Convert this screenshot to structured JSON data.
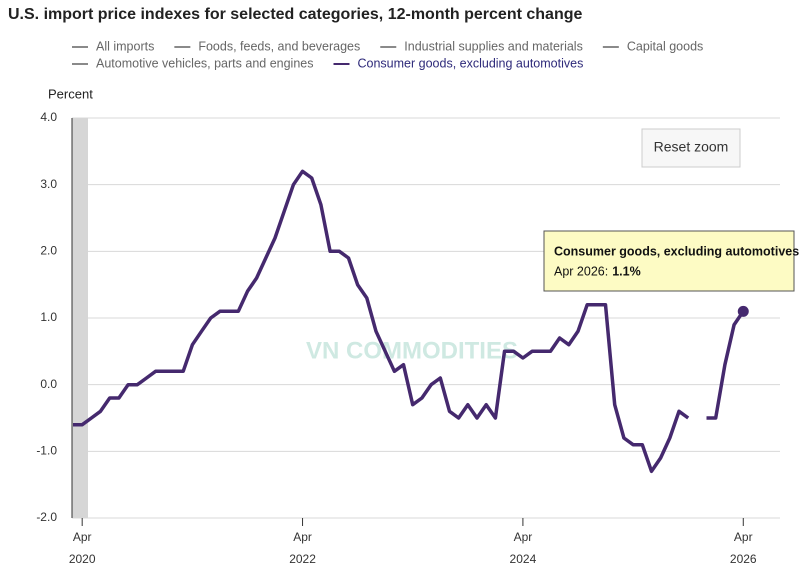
{
  "chart_data": {
    "type": "line",
    "title": "U.S. import price indexes for selected categories, 12-month percent change",
    "y_axis_label": "Percent",
    "watermark": "VN COMMODITIES",
    "reset_button": "Reset zoom",
    "x": [
      "2020-03",
      "2020-04",
      "2020-05",
      "2020-06",
      "2020-07",
      "2020-08",
      "2020-09",
      "2020-10",
      "2020-11",
      "2020-12",
      "2021-01",
      "2021-02",
      "2021-03",
      "2021-04",
      "2021-05",
      "2021-06",
      "2021-07",
      "2021-08",
      "2021-09",
      "2021-10",
      "2021-11",
      "2021-12",
      "2022-01",
      "2022-02",
      "2022-03",
      "2022-04",
      "2022-05",
      "2022-06",
      "2022-07",
      "2022-08",
      "2022-09",
      "2022-10",
      "2022-11",
      "2022-12",
      "2023-01",
      "2023-02",
      "2023-03",
      "2023-04",
      "2023-05",
      "2023-06",
      "2023-07",
      "2023-08",
      "2023-09",
      "2023-10",
      "2023-11",
      "2023-12",
      "2024-01",
      "2024-02",
      "2024-03",
      "2024-04",
      "2024-05",
      "2024-06",
      "2024-07",
      "2024-08",
      "2024-09",
      "2024-10",
      "2024-11",
      "2024-12",
      "2025-01",
      "2025-02",
      "2025-03",
      "2025-04",
      "2025-05",
      "2025-06",
      "2025-07",
      "2025-08",
      "2025-09",
      "2025-10",
      "2025-11",
      "2025-12",
      "2026-01",
      "2026-02",
      "2026-03",
      "2026-04"
    ],
    "xlim": [
      "2020-03",
      "2026-08"
    ],
    "xticks": [
      {
        "value": "2020-04",
        "label": "Apr",
        "year": "2020"
      },
      {
        "value": "2022-04",
        "label": "Apr",
        "year": "2022"
      },
      {
        "value": "2024-04",
        "label": "Apr",
        "year": "2024"
      },
      {
        "value": "2026-04",
        "label": "Apr",
        "year": "2026"
      }
    ],
    "ylim": [
      -2,
      4
    ],
    "yticks": [
      {
        "value": -2,
        "label": "-2.0"
      },
      {
        "value": -1,
        "label": "-1.0"
      },
      {
        "value": 0,
        "label": "0.0"
      },
      {
        "value": 1,
        "label": "1.0"
      },
      {
        "value": 2,
        "label": "2.0"
      },
      {
        "value": 3,
        "label": "3.0"
      },
      {
        "value": 4,
        "label": "4.0"
      }
    ],
    "grid": true,
    "series": [
      {
        "name": "All imports",
        "color": "#8a8a8a",
        "visible": false
      },
      {
        "name": "Foods, feeds, and beverages",
        "color": "#8a8a8a",
        "visible": false
      },
      {
        "name": "Industrial supplies and materials",
        "color": "#8a8a8a",
        "visible": false
      },
      {
        "name": "Capital goods",
        "color": "#8a8a8a",
        "visible": false
      },
      {
        "name": "Automotive vehicles, parts and engines",
        "color": "#8a8a8a",
        "visible": false
      },
      {
        "name": "Consumer goods, excluding automotives",
        "color": "#45296e",
        "visible": true,
        "values": [
          -0.6,
          -0.6,
          -0.5,
          -0.4,
          -0.2,
          -0.2,
          0.0,
          0.0,
          0.1,
          0.2,
          0.2,
          0.2,
          0.2,
          0.6,
          0.8,
          1.0,
          1.1,
          1.1,
          1.1,
          1.4,
          1.6,
          1.9,
          2.2,
          2.6,
          3.0,
          3.2,
          3.1,
          2.7,
          2.0,
          2.0,
          1.9,
          1.5,
          1.3,
          0.8,
          0.5,
          0.2,
          0.3,
          -0.3,
          -0.2,
          0.0,
          0.1,
          -0.4,
          -0.5,
          -0.3,
          -0.5,
          -0.3,
          -0.5,
          0.5,
          0.5,
          0.4,
          0.5,
          0.5,
          0.5,
          0.7,
          0.6,
          0.8,
          1.2,
          1.2,
          1.2,
          -0.3,
          -0.8,
          -0.9,
          -0.9,
          -1.3,
          -1.1,
          -0.8,
          -0.4,
          -0.5,
          null,
          -0.5,
          -0.5,
          0.3,
          0.9,
          1.1
        ]
      }
    ],
    "tooltip": {
      "series": 5,
      "index": 73,
      "label": "Apr 2026:",
      "value_label": "1.1%"
    }
  }
}
